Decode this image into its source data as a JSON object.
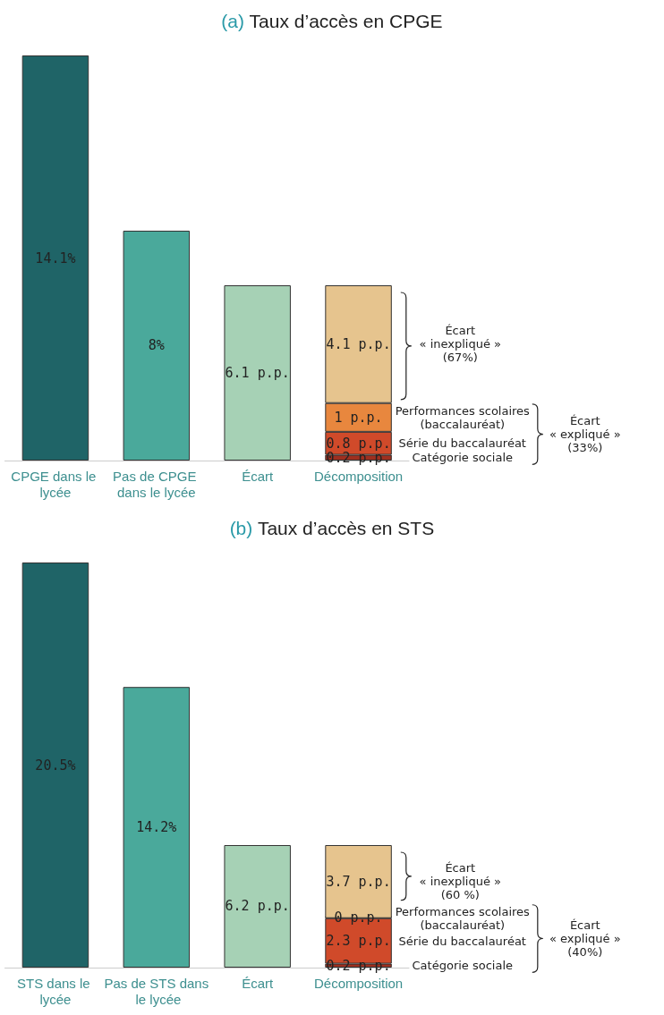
{
  "chart_data": [
    {
      "type": "bar",
      "title": "(a) Taux d’accès en CPGE",
      "stacked": true,
      "categories": [
        "CPGE dans le lycée",
        "Pas de CPGE dans le lycée",
        "Écart",
        "Décomposition"
      ],
      "annotations": [
        "Écart « expliqué » (33%)"
      ],
      "series": [
        {
          "colors": [
            "#1f6467",
            "#4aa99b",
            "#a6d1b5",
            null
          ],
          "values": [
            14.1,
            8,
            6.1,
            null
          ],
          "value_labels": [
            "14.1%",
            "8%",
            "6.1 p.p.",
            null
          ]
        },
        {
          "name": "Catégorie sociale",
          "color": "#9e2f1f",
          "values": [
            null,
            null,
            null,
            0.2
          ],
          "value_labels": [
            null,
            null,
            null,
            "0.2 p.p."
          ]
        },
        {
          "name": "Série du baccalauréat",
          "color": "#d04a2a",
          "values": [
            null,
            null,
            null,
            0.8
          ],
          "value_labels": [
            null,
            null,
            null,
            "0.8 p.p."
          ]
        },
        {
          "name": "Performances scolaires (baccalauréat)",
          "color": "#e8873e",
          "values": [
            null,
            null,
            null,
            1
          ],
          "value_labels": [
            null,
            null,
            null,
            "1 p.p."
          ]
        },
        {
          "name": "Écart « inexpliqué » (67%)",
          "color": "#e6c48e",
          "values": [
            null,
            null,
            null,
            4.1
          ],
          "value_labels": [
            null,
            null,
            null,
            "4.1 p.p."
          ]
        }
      ]
    },
    {
      "type": "bar",
      "title": "(b) Taux d’accès en STS",
      "stacked": true,
      "categories": [
        "STS dans le lycée",
        "Pas de STS dans le lycée",
        "Écart",
        "Décomposition"
      ],
      "annotations": [
        "Écart « expliqué » (40%)"
      ],
      "series": [
        {
          "colors": [
            "#1f6467",
            "#4aa99b",
            "#a6d1b5",
            null
          ],
          "values": [
            20.5,
            14.2,
            6.2,
            null
          ],
          "value_labels": [
            "20.5%",
            "14.2%",
            "6.2 p.p.",
            null
          ]
        },
        {
          "name": "Catégorie sociale",
          "color": "#9e2f1f",
          "values": [
            null,
            null,
            null,
            0.2
          ],
          "value_labels": [
            null,
            null,
            null,
            "0.2 p.p."
          ]
        },
        {
          "name": "Série du baccalauréat",
          "color": "#d04a2a",
          "values": [
            null,
            null,
            null,
            2.3
          ],
          "value_labels": [
            null,
            null,
            null,
            "2.3 p.p."
          ]
        },
        {
          "name": "Performances scolaires (baccalauréat)",
          "color": "#e8873e",
          "values": [
            null,
            null,
            null,
            0
          ],
          "value_labels": [
            null,
            null,
            null,
            "0 p.p."
          ]
        },
        {
          "name": "Écart « inexpliqué » (60 %)",
          "color": "#e6c48e",
          "values": [
            null,
            null,
            null,
            3.7
          ],
          "value_labels": [
            null,
            null,
            null,
            "3.7 p.p."
          ]
        }
      ]
    }
  ]
}
